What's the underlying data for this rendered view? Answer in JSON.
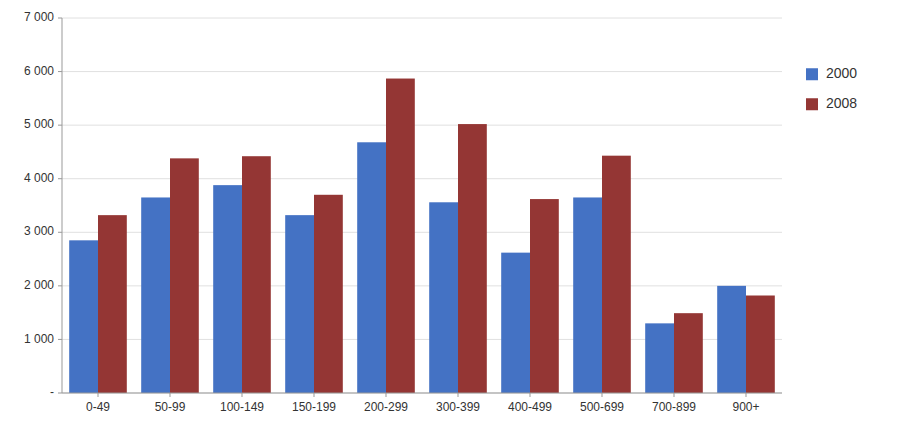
{
  "chart_data": {
    "type": "bar",
    "categories": [
      "0-49",
      "50-99",
      "100-149",
      "150-199",
      "200-299",
      "300-399",
      "400-499",
      "500-699",
      "700-899",
      "900+"
    ],
    "series": [
      {
        "name": "2000",
        "color": "#4472C4",
        "values": [
          2850,
          3650,
          3880,
          3320,
          4680,
          3560,
          2620,
          3650,
          1300,
          2000
        ]
      },
      {
        "name": "2008",
        "color": "#943634",
        "values": [
          3320,
          4380,
          4420,
          3700,
          5870,
          5020,
          3620,
          4430,
          1490,
          1820
        ]
      }
    ],
    "ylim": [
      0,
      7000
    ],
    "yticks": [
      {
        "value": 0,
        "label": "-"
      },
      {
        "value": 1000,
        "label": "1 000"
      },
      {
        "value": 2000,
        "label": "2 000"
      },
      {
        "value": 3000,
        "label": "3 000"
      },
      {
        "value": 4000,
        "label": "4 000"
      },
      {
        "value": 5000,
        "label": "5 000"
      },
      {
        "value": 6000,
        "label": "6 000"
      },
      {
        "value": 7000,
        "label": "7 000"
      }
    ],
    "grid": true,
    "legend": "right"
  }
}
